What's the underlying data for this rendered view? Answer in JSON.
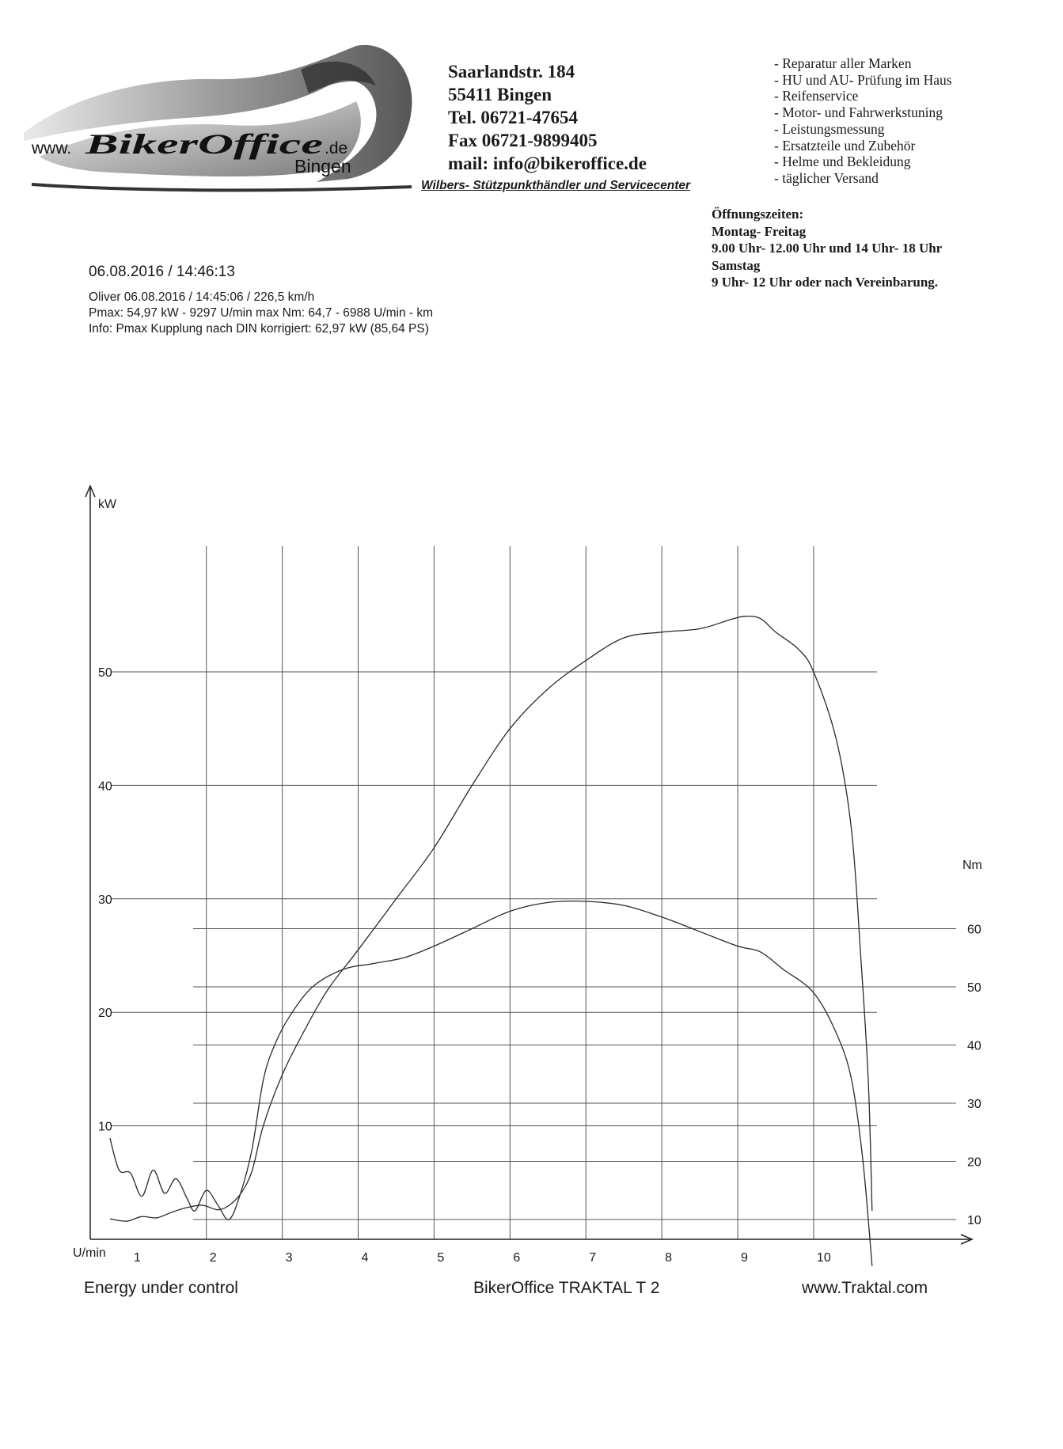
{
  "logo": {
    "brand_text": "BikerOffice",
    "www_text": "www.",
    "de_text": ".de",
    "city_text": "Bingen"
  },
  "address": {
    "street": "Saarlandstr. 184",
    "city": "55411 Bingen",
    "phone": "Tel. 06721-47654",
    "fax": "Fax 06721-9899405",
    "mail": "mail: info@bikeroffice.de"
  },
  "dealer_line": "Wilbers- Stützpunkthändler und Servicecenter",
  "services": [
    "- Reparatur aller Marken",
    "- HU und AU- Prüfung im Haus",
    "- Reifenservice",
    "- Motor- und Fahrwerkstuning",
    "- Leistungsmessung",
    "- Ersatzteile und Zubehör",
    "- Helme und Bekleidung",
    "- täglicher Versand"
  ],
  "hours": [
    "Öffnungszeiten:",
    "Montag- Freitag",
    "9.00 Uhr- 12.00 Uhr und 14 Uhr- 18 Uhr",
    "Samstag",
    "9 Uhr- 12 Uhr  oder nach Vereinbarung."
  ],
  "run": {
    "header": "06.08.2016  /  14:46:13",
    "lines": [
      "Oliver    06.08.2016  /  14:45:06  / 226,5 km/h",
      "Pmax: 54,97 kW - 9297 U/min    max Nm: 64,7 - 6988 U/min     - km",
      "Info: Pmax Kupplung nach DIN korrigiert: 62,97 kW (85,64 PS)"
    ]
  },
  "footer": {
    "left": "Energy  under control",
    "center": "BikerOffice TRAKTAL  T 2",
    "right": "www.Traktal.com"
  },
  "chart_data": {
    "type": "line",
    "title": "",
    "xlabel": "U/min",
    "ylabel": "kW",
    "y2label": "Nm",
    "xlim": [
      0.5,
      10.8
    ],
    "ylim": [
      0,
      60
    ],
    "y2lim": [
      0,
      70
    ],
    "x_ticks": [
      "1",
      "2",
      "3",
      "4",
      "5",
      "6",
      "7",
      "8",
      "9",
      "10"
    ],
    "y_ticks": [
      10,
      20,
      30,
      40,
      50
    ],
    "y2_ticks": [
      10,
      20,
      30,
      40,
      50,
      60
    ],
    "grid": true,
    "legend": "none",
    "series": [
      {
        "axis": "left",
        "x": [
          0.73,
          0.95,
          1.15,
          1.35,
          1.55,
          1.75,
          1.95,
          2.15,
          2.3,
          2.45,
          2.6,
          2.75,
          3.0,
          3.3,
          3.6,
          4.0,
          4.5,
          5.0,
          5.5,
          6.0,
          6.5,
          7.0,
          7.5,
          8.0,
          8.5,
          8.9,
          9.1,
          9.3,
          9.5,
          9.8,
          10.0,
          10.3,
          10.5,
          10.62,
          10.72,
          10.77
        ],
        "y": [
          1.8,
          1.6,
          2.0,
          1.9,
          2.4,
          2.8,
          3.0,
          2.6,
          3.0,
          4.0,
          6.0,
          10.0,
          14.5,
          18.5,
          22.0,
          25.5,
          30.0,
          34.5,
          40.0,
          45.0,
          48.5,
          51.0,
          53.0,
          53.5,
          53.8,
          54.6,
          54.9,
          54.7,
          53.5,
          52.0,
          50.0,
          44.0,
          36.0,
          25.0,
          14.0,
          2.5
        ]
      },
      {
        "axis": "right",
        "x": [
          0.73,
          0.85,
          1.0,
          1.15,
          1.3,
          1.45,
          1.6,
          1.75,
          1.85,
          2.0,
          2.15,
          2.3,
          2.45,
          2.6,
          2.75,
          2.9,
          3.1,
          3.4,
          3.8,
          4.2,
          4.6,
          5.0,
          5.5,
          6.0,
          6.5,
          6.99,
          7.5,
          8.0,
          8.5,
          9.0,
          9.3,
          9.6,
          10.0,
          10.3,
          10.5,
          10.65,
          10.77
        ],
        "y": [
          24.0,
          18.5,
          18.0,
          14.0,
          18.5,
          14.5,
          17.0,
          13.5,
          11.5,
          15.0,
          12.5,
          10.0,
          14.5,
          22.0,
          34.0,
          40.0,
          45.0,
          50.0,
          53.0,
          54.0,
          55.0,
          57.0,
          60.0,
          63.0,
          64.5,
          64.7,
          64.0,
          62.0,
          59.5,
          57.0,
          56.0,
          53.0,
          49.0,
          42.0,
          34.0,
          20.0,
          2.0
        ]
      }
    ]
  }
}
